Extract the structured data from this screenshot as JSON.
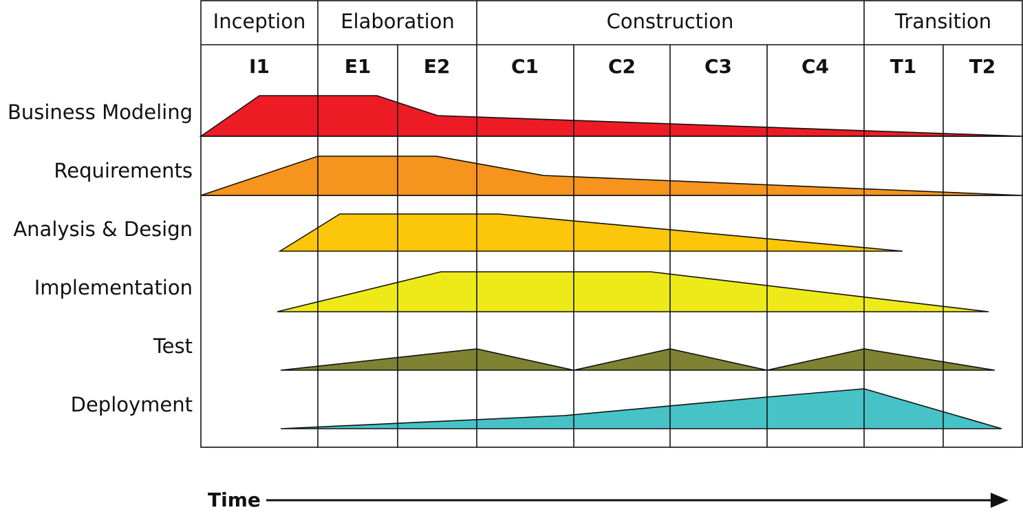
{
  "phases": [
    "Inception",
    "Elaboration",
    "Construction",
    "Transition"
  ],
  "iterations": [
    "I1",
    "E1",
    "E2",
    "C1",
    "C2",
    "C3",
    "C4",
    "T1",
    "T2"
  ],
  "disciplines": [
    "Business Modeling",
    "Requirements",
    "Analysis & Design",
    "Implementation",
    "Test",
    "Deployment"
  ],
  "time_axis": "Time"
}
